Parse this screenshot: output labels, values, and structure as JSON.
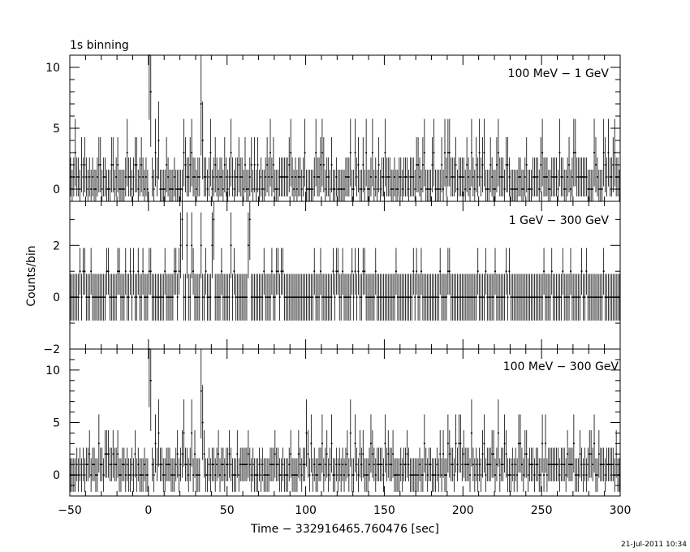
{
  "chart_data": {
    "type": "line",
    "title": "1s binning",
    "xlabel": "Time − 332916465.760476 [sec]",
    "ylabel": "Counts/bin",
    "xlim": [
      -50,
      300
    ],
    "x_ticks": [
      -50,
      0,
      50,
      100,
      150,
      200,
      250,
      300
    ],
    "x_tick_labels": [
      "−50",
      "0",
      "50",
      "100",
      "150",
      "200",
      "250",
      "300"
    ],
    "timestamp": "21-Jul-2011 10:34",
    "bin_width": 1,
    "panels": [
      {
        "label": "100 MeV − 1 GeV",
        "ylim": [
          -1,
          11
        ],
        "y_ticks": [
          0,
          5,
          10
        ],
        "y_tick_labels": [
          "0",
          "5",
          "10"
        ],
        "error_scale": 1.6,
        "peaks": [
          {
            "x": 0,
            "y": 11
          },
          {
            "x": 1,
            "y": 8
          },
          {
            "x": 4,
            "y": 3
          },
          {
            "x": 6,
            "y": 4
          },
          {
            "x": 33,
            "y": 7
          },
          {
            "x": 34,
            "y": 4
          },
          {
            "x": 27,
            "y": 3
          },
          {
            "x": 22,
            "y": 3
          },
          {
            "x": 90,
            "y": 3
          },
          {
            "x": 99,
            "y": 3
          },
          {
            "x": 110,
            "y": 3
          },
          {
            "x": 128,
            "y": 3
          },
          {
            "x": 131,
            "y": 3
          },
          {
            "x": 150,
            "y": 3
          },
          {
            "x": 175,
            "y": 3
          },
          {
            "x": 190,
            "y": 3
          },
          {
            "x": 205,
            "y": 3
          },
          {
            "x": 213,
            "y": 3
          },
          {
            "x": 222,
            "y": 3
          },
          {
            "x": 250,
            "y": 3
          },
          {
            "x": 270,
            "y": 3
          },
          {
            "x": 283,
            "y": 3
          }
        ]
      },
      {
        "label": "1 GeV − 300 GeV",
        "ylim": [
          -2,
          3.7
        ],
        "y_ticks": [
          -2,
          0,
          2
        ],
        "y_tick_labels": [
          "−2",
          "0",
          "2"
        ],
        "error_scale": 0.9,
        "peaks": [
          {
            "x": 21,
            "y": 3
          },
          {
            "x": 41,
            "y": 3
          },
          {
            "x": 64,
            "y": 3
          },
          {
            "x": 20,
            "y": 2
          },
          {
            "x": 24,
            "y": 2
          },
          {
            "x": 27,
            "y": 2
          },
          {
            "x": 33,
            "y": 2
          },
          {
            "x": 40,
            "y": 2
          },
          {
            "x": 52,
            "y": 2
          },
          {
            "x": 63,
            "y": 2
          }
        ]
      },
      {
        "label": "100 MeV − 300 GeV",
        "ylim": [
          -2,
          12
        ],
        "y_ticks": [
          0,
          5,
          10
        ],
        "y_tick_labels": [
          "0",
          "5",
          "10"
        ],
        "error_scale": 1.6,
        "peaks": [
          {
            "x": 0,
            "y": 12
          },
          {
            "x": 1,
            "y": 9
          },
          {
            "x": 4,
            "y": 3
          },
          {
            "x": 6,
            "y": 4
          },
          {
            "x": 33,
            "y": 8
          },
          {
            "x": 34,
            "y": 5
          },
          {
            "x": 27,
            "y": 4
          },
          {
            "x": 22,
            "y": 4
          },
          {
            "x": 100,
            "y": 4
          },
          {
            "x": 110,
            "y": 3
          },
          {
            "x": 128,
            "y": 4
          },
          {
            "x": 131,
            "y": 3
          },
          {
            "x": 150,
            "y": 3
          },
          {
            "x": 175,
            "y": 3
          },
          {
            "x": 190,
            "y": 3
          },
          {
            "x": 205,
            "y": 4
          },
          {
            "x": 213,
            "y": 3
          },
          {
            "x": 222,
            "y": 4
          },
          {
            "x": 250,
            "y": 3
          },
          {
            "x": 270,
            "y": 3
          },
          {
            "x": 283,
            "y": 3
          }
        ]
      }
    ]
  }
}
